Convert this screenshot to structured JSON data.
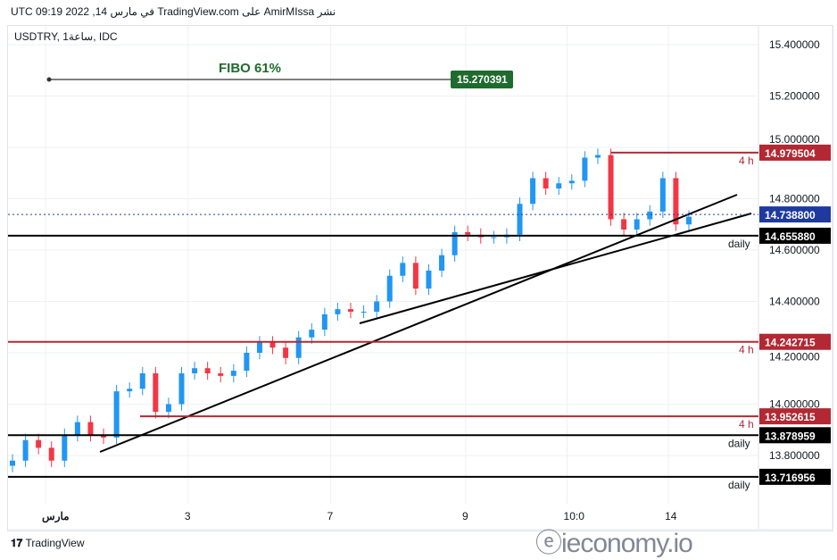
{
  "header": {
    "published": "UTC في مارس 14, 2022 09:19 TradingView.com على AmirMIssa نشر",
    "symbol": "USDTRY, 1ساعة, IDC"
  },
  "footer": {
    "brand": "TradingView",
    "watermark": "ieconomy.io"
  },
  "chart_data": {
    "type": "candlestick",
    "symbol": "USDTRY",
    "interval": "1h",
    "source": "IDC",
    "ylim": [
      13.6,
      15.45
    ],
    "y_ticks": [
      "15.400000",
      "15.200000",
      "15.000000",
      "14.800000",
      "14.600000",
      "14.400000",
      "14.200000",
      "14.000000",
      "13.800000"
    ],
    "x_ticks": [
      {
        "label": "مارس",
        "x": 0.05
      },
      {
        "label": "3",
        "x": 0.24
      },
      {
        "label": "7",
        "x": 0.43
      },
      {
        "label": "9",
        "x": 0.61
      },
      {
        "label": "10:0",
        "x": 0.745
      },
      {
        "label": "14",
        "x": 0.88
      }
    ],
    "closes": [
      13.78,
      13.86,
      13.83,
      13.78,
      13.88,
      13.93,
      13.88,
      13.87,
      14.05,
      14.06,
      14.12,
      13.97,
      14.0,
      14.12,
      14.14,
      14.12,
      14.11,
      14.13,
      14.2,
      14.24,
      14.22,
      14.18,
      14.26,
      14.29,
      14.35,
      14.37,
      14.36,
      14.36,
      14.4,
      14.5,
      14.55,
      14.45,
      14.52,
      14.58,
      14.67,
      14.66,
      14.65,
      14.65,
      14.66,
      14.78,
      14.88,
      14.84,
      14.86,
      14.87,
      14.96,
      14.97,
      14.72,
      14.68,
      14.72,
      14.75,
      14.88,
      14.7,
      14.73
    ],
    "levels": [
      {
        "value": "14.979504",
        "tag": "4 h",
        "color": "#b22833",
        "partial": true
      },
      {
        "value": "14.655880",
        "tag": "daily",
        "color": "#000000"
      },
      {
        "value": "14.242715",
        "tag": "4 h",
        "color": "#b22833"
      },
      {
        "value": "13.952615",
        "tag": "4 h",
        "color": "#b22833",
        "partial": true
      },
      {
        "value": "13.878959",
        "tag": "daily",
        "color": "#000000"
      },
      {
        "value": "13.716956",
        "tag": "daily",
        "color": "#000000"
      }
    ],
    "last_price": {
      "value": "14.738800",
      "color": "#1e3a9e"
    },
    "fibo": {
      "label": "FIBO 61%",
      "value": "15.270391",
      "color": "#1f6b2e"
    },
    "colors": {
      "up": "#2196f3",
      "down": "#f23645"
    }
  }
}
